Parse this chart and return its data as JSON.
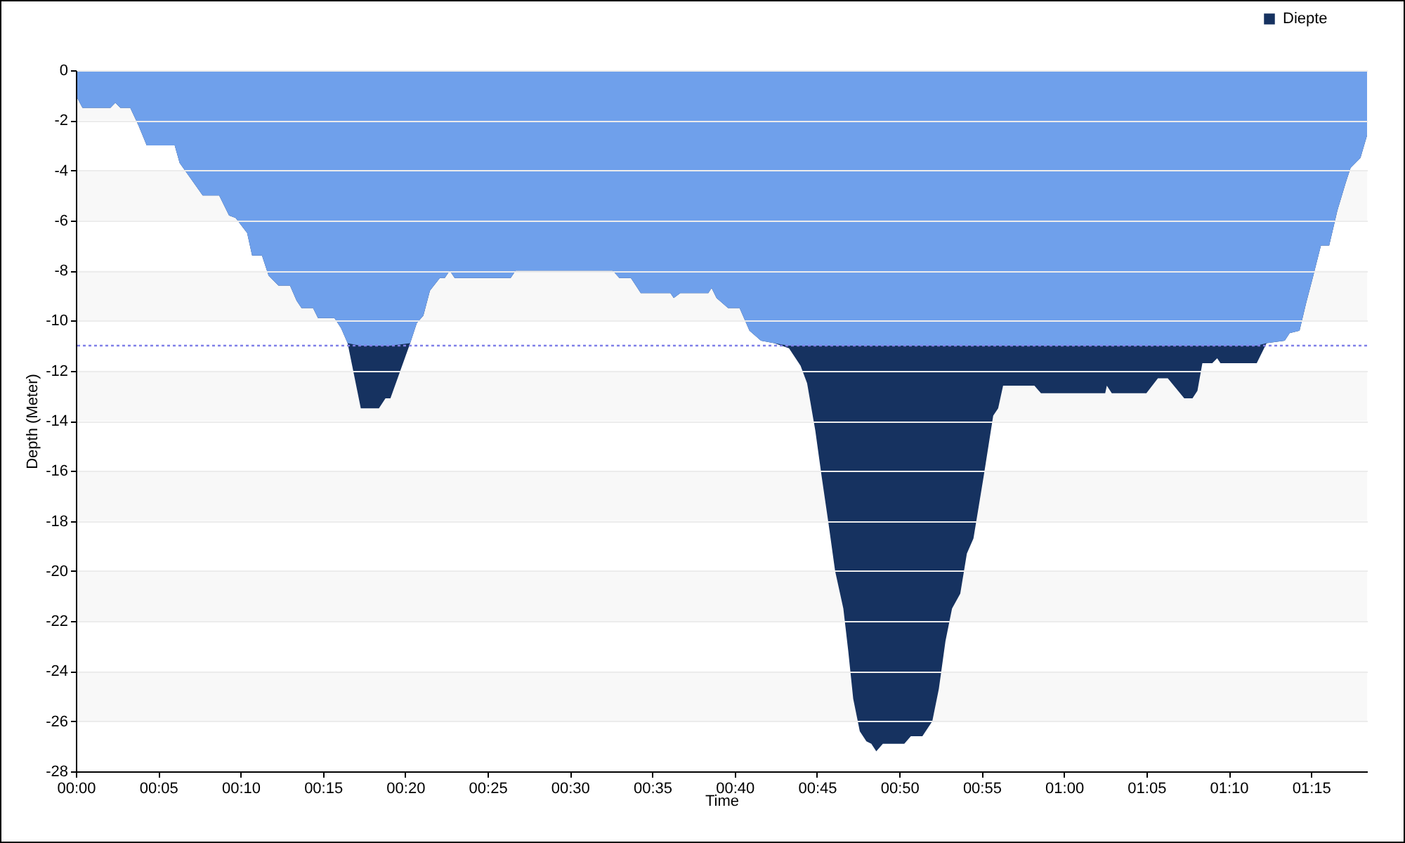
{
  "chart_data": {
    "type": "area",
    "xlabel": "Time",
    "ylabel": "Depth (Meter)",
    "legend": "top right",
    "grid": true,
    "xlim": [
      0,
      78.4
    ],
    "ylim": [
      -28,
      0
    ],
    "xticks": [
      {
        "value": 0,
        "label": "00:00"
      },
      {
        "value": 5,
        "label": "00:05"
      },
      {
        "value": 10,
        "label": "00:10"
      },
      {
        "value": 15,
        "label": "00:15"
      },
      {
        "value": 20,
        "label": "00:20"
      },
      {
        "value": 25,
        "label": "00:25"
      },
      {
        "value": 30,
        "label": "00:30"
      },
      {
        "value": 35,
        "label": "00:35"
      },
      {
        "value": 40,
        "label": "00:40"
      },
      {
        "value": 45,
        "label": "00:45"
      },
      {
        "value": 50,
        "label": "00:50"
      },
      {
        "value": 55,
        "label": "00:55"
      },
      {
        "value": 60,
        "label": "01:00"
      },
      {
        "value": 65,
        "label": "01:05"
      },
      {
        "value": 70,
        "label": "01:10"
      },
      {
        "value": 75,
        "label": "01:15"
      }
    ],
    "yticks": [
      0,
      -2,
      -4,
      -6,
      -8,
      -10,
      -12,
      -14,
      -16,
      -18,
      -20,
      -22,
      -24,
      -26,
      -28
    ],
    "ref_lines": [
      {
        "axis": "y",
        "value": -11,
        "color": "#8080e8",
        "line_style": "dotted"
      }
    ],
    "x": [
      0,
      0.4,
      2.1,
      2.4,
      2.7,
      3.3,
      3.8,
      4.3,
      6.0,
      6.3,
      7.7,
      8.7,
      9.3,
      9.7,
      10.4,
      10.7,
      11.3,
      11.7,
      12.3,
      13.0,
      13.4,
      13.7,
      14.4,
      14.7,
      15.7,
      16.1,
      16.5,
      17.3,
      18.4,
      18.8,
      19.1,
      20.3,
      20.7,
      21.1,
      21.5,
      22.1,
      22.4,
      22.7,
      23.0,
      26.4,
      26.7,
      32.6,
      33.0,
      33.7,
      34.3,
      36.1,
      36.3,
      36.7,
      38.4,
      38.6,
      38.9,
      39.6,
      40.3,
      40.9,
      41.6,
      42.4,
      43.3,
      44.0,
      44.4,
      44.9,
      45.3,
      45.7,
      46.1,
      46.6,
      46.9,
      47.2,
      47.6,
      48.0,
      48.3,
      48.6,
      49.0,
      50.3,
      50.7,
      51.4,
      52.0,
      52.4,
      52.8,
      53.2,
      53.7,
      54.1,
      54.5,
      55.1,
      55.7,
      56.0,
      56.3,
      58.2,
      58.6,
      62.5,
      62.6,
      62.9,
      65.0,
      65.7,
      66.3,
      67.3,
      67.8,
      68.1,
      68.4,
      69.0,
      69.3,
      69.5,
      71.7,
      72.3,
      73.4,
      73.7,
      74.3,
      74.7,
      75.1,
      75.6,
      76.1,
      76.6,
      77.1,
      77.4,
      78.0,
      78.4
    ],
    "series": [
      {
        "name": "Diepte",
        "color": "#163260",
        "values": [
          -1.0,
          -1.5,
          -1.5,
          -1.3,
          -1.5,
          -1.5,
          -2.2,
          -3.0,
          -3.0,
          -3.7,
          -5.0,
          -5.0,
          -5.8,
          -5.9,
          -6.5,
          -7.4,
          -7.4,
          -8.2,
          -8.6,
          -8.6,
          -9.2,
          -9.5,
          -9.5,
          -9.9,
          -9.9,
          -10.3,
          -10.9,
          -13.5,
          -13.5,
          -13.1,
          -13.1,
          -10.9,
          -10.1,
          -9.8,
          -8.8,
          -8.3,
          -8.3,
          -8.0,
          -8.3,
          -8.3,
          -8.0,
          -8.0,
          -8.3,
          -8.3,
          -8.9,
          -8.9,
          -9.1,
          -8.9,
          -8.9,
          -8.7,
          -9.1,
          -9.5,
          -9.5,
          -10.4,
          -10.8,
          -10.9,
          -11.1,
          -11.8,
          -12.5,
          -14.4,
          -16.3,
          -18.1,
          -20.0,
          -21.5,
          -23.2,
          -25.1,
          -26.4,
          -26.8,
          -26.9,
          -27.2,
          -26.9,
          -26.9,
          -26.6,
          -26.6,
          -26.0,
          -24.7,
          -22.8,
          -21.5,
          -20.9,
          -19.3,
          -18.7,
          -16.3,
          -13.8,
          -13.5,
          -12.6,
          -12.6,
          -12.9,
          -12.9,
          -12.6,
          -12.9,
          -12.9,
          -12.3,
          -12.3,
          -13.1,
          -13.1,
          -12.8,
          -11.7,
          -11.7,
          -11.5,
          -11.7,
          -11.7,
          -10.9,
          -10.8,
          -10.5,
          -10.4,
          -9.3,
          -8.3,
          -7.0,
          -7.0,
          -5.6,
          -4.5,
          -3.9,
          -3.5,
          -2.6
        ]
      },
      {
        "color": "#6fa0eb",
        "values": [
          -1.0,
          -1.5,
          -1.5,
          -1.3,
          -1.5,
          -1.5,
          -2.2,
          -3.0,
          -3.0,
          -3.7,
          -5.0,
          -5.0,
          -5.8,
          -5.9,
          -6.5,
          -7.4,
          -7.4,
          -8.2,
          -8.6,
          -8.6,
          -9.2,
          -9.5,
          -9.5,
          -9.9,
          -9.9,
          -10.3,
          -10.9,
          -11,
          -11,
          -11,
          -11,
          -10.9,
          -10.1,
          -9.8,
          -8.8,
          -8.3,
          -8.3,
          -8.0,
          -8.3,
          -8.3,
          -8.0,
          -8.0,
          -8.3,
          -8.3,
          -8.9,
          -8.9,
          -9.1,
          -8.9,
          -8.9,
          -8.7,
          -9.1,
          -9.5,
          -9.5,
          -10.4,
          -10.8,
          -10.9,
          -11,
          -11,
          -11,
          -11,
          -11,
          -11,
          -11,
          -11,
          -11,
          -11,
          -11,
          -11,
          -11,
          -11,
          -11,
          -11,
          -11,
          -11,
          -11,
          -11,
          -11,
          -11,
          -11,
          -11,
          -11,
          -11,
          -11,
          -11,
          -11,
          -11,
          -11,
          -11,
          -11,
          -11,
          -11,
          -11,
          -11,
          -11,
          -11,
          -11,
          -11,
          -11,
          -11,
          -11,
          -11,
          -10.9,
          -10.8,
          -10.5,
          -10.4,
          -9.3,
          -8.3,
          -7.0,
          -7.0,
          -5.6,
          -4.5,
          -3.9,
          -3.5,
          -2.6
        ]
      }
    ]
  }
}
